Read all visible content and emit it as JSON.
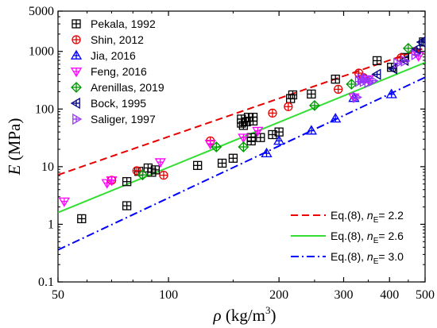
{
  "chart_data": {
    "type": "scatter",
    "x_scale": "log",
    "y_scale": "log",
    "xlim": [
      50,
      500
    ],
    "ylim": [
      0.1,
      5000
    ],
    "x_ticks": [
      50,
      100,
      200,
      300,
      400,
      500
    ],
    "x_tick_labels": [
      "50",
      "100",
      "200",
      "300",
      "400",
      "500"
    ],
    "y_ticks": [
      0.1,
      1,
      10,
      100,
      1000,
      5000
    ],
    "y_tick_labels": [
      "0.1",
      "1",
      "10",
      "100",
      "1000",
      "5000"
    ],
    "xlabel": {
      "symbol": "ρ",
      "unit": " (kg/m",
      "exp": "3",
      "close": ")"
    },
    "ylabel": {
      "symbol": "E",
      "unit": " (MPa)"
    },
    "legend_position": "top-left",
    "fit_legend_position": "bottom-right",
    "series": [
      {
        "name": "Pekala, 1992",
        "marker": "boxplus",
        "color": "#000000",
        "points": [
          [
            58,
            1.25
          ],
          [
            77,
            2.1
          ],
          [
            77,
            5.5
          ],
          [
            83,
            8.3
          ],
          [
            88,
            9.5
          ],
          [
            90,
            8.0
          ],
          [
            92,
            8.8
          ],
          [
            120,
            10.5
          ],
          [
            140,
            11.5
          ],
          [
            150,
            14
          ],
          [
            158,
            67
          ],
          [
            158,
            57
          ],
          [
            160,
            52
          ],
          [
            163,
            60
          ],
          [
            165,
            72
          ],
          [
            168,
            28
          ],
          [
            168,
            32
          ],
          [
            170,
            72
          ],
          [
            170,
            62
          ],
          [
            178,
            32
          ],
          [
            192,
            36
          ],
          [
            200,
            40
          ],
          [
            215,
            152
          ],
          [
            218,
            176
          ],
          [
            245,
            182
          ],
          [
            285,
            330
          ],
          [
            370,
            690
          ],
          [
            405,
            530
          ],
          [
            440,
            785
          ],
          [
            495,
            1460
          ]
        ]
      },
      {
        "name": "Shin, 2012",
        "marker": "circleplus",
        "color": "#e60000",
        "points": [
          [
            70,
            5.8
          ],
          [
            82,
            8.5
          ],
          [
            97,
            7.1
          ],
          [
            130,
            28
          ],
          [
            192,
            85
          ],
          [
            212,
            110
          ],
          [
            290,
            220
          ],
          [
            330,
            420
          ],
          [
            340,
            350
          ],
          [
            430,
            770
          ],
          [
            470,
            1000
          ]
        ]
      },
      {
        "name": "Jia, 2016",
        "marker": "triangle-up",
        "color": "#0000ff",
        "points": [
          [
            185,
            17
          ],
          [
            200,
            28
          ],
          [
            245,
            42
          ],
          [
            285,
            68
          ],
          [
            320,
            155
          ],
          [
            405,
            180
          ]
        ]
      },
      {
        "name": "Feng, 2016",
        "marker": "triangle-down",
        "color": "#ff00ff",
        "points": [
          [
            52,
            2.5
          ],
          [
            68,
            5.2
          ],
          [
            70,
            5.8
          ],
          [
            95,
            12
          ],
          [
            130,
            25
          ],
          [
            160,
            32
          ],
          [
            175,
            42
          ],
          [
            320,
            160
          ],
          [
            350,
            330
          ],
          [
            480,
            830
          ]
        ]
      },
      {
        "name": "Arenillas, 2019",
        "marker": "diamond",
        "color": "#009900",
        "points": [
          [
            85,
            7.2
          ],
          [
            135,
            22
          ],
          [
            160,
            22
          ],
          [
            250,
            115
          ],
          [
            315,
            270
          ],
          [
            450,
            1130
          ]
        ]
      },
      {
        "name": "Bock, 1995",
        "marker": "triangle-left",
        "color": "#000080",
        "points": [
          [
            370,
            400
          ],
          [
            410,
            500
          ],
          [
            440,
            700
          ],
          [
            475,
            1100
          ],
          [
            490,
            1450
          ],
          [
            500,
            1580
          ]
        ]
      },
      {
        "name": "Saliger, 1997",
        "marker": "triangle-right",
        "color": "#9933ff",
        "points": [
          [
            325,
            160
          ],
          [
            330,
            300
          ],
          [
            335,
            330
          ],
          [
            340,
            300
          ],
          [
            345,
            340
          ],
          [
            350,
            290
          ],
          [
            360,
            310
          ],
          [
            420,
            620
          ],
          [
            440,
            680
          ],
          [
            470,
            880
          ]
        ]
      }
    ],
    "fits": [
      {
        "label_prefix": "Eq.(8), ",
        "n": "n",
        "sub": "E",
        "value": "= 2.2",
        "color": "#e60000",
        "dash": "dash",
        "y_at_50": 7.2,
        "y_at_500": 1150
      },
      {
        "label_prefix": "Eq.(8), ",
        "n": "n",
        "sub": "E",
        "value": "= 2.6",
        "color": "#33dd33",
        "dash": "solid",
        "y_at_50": 1.6,
        "y_at_500": 640
      },
      {
        "label_prefix": "Eq.(8), ",
        "n": "n",
        "sub": "E",
        "value": "= 3.0",
        "color": "#0000ff",
        "dash": "dashdot",
        "y_at_50": 0.36,
        "y_at_500": 355
      }
    ]
  }
}
